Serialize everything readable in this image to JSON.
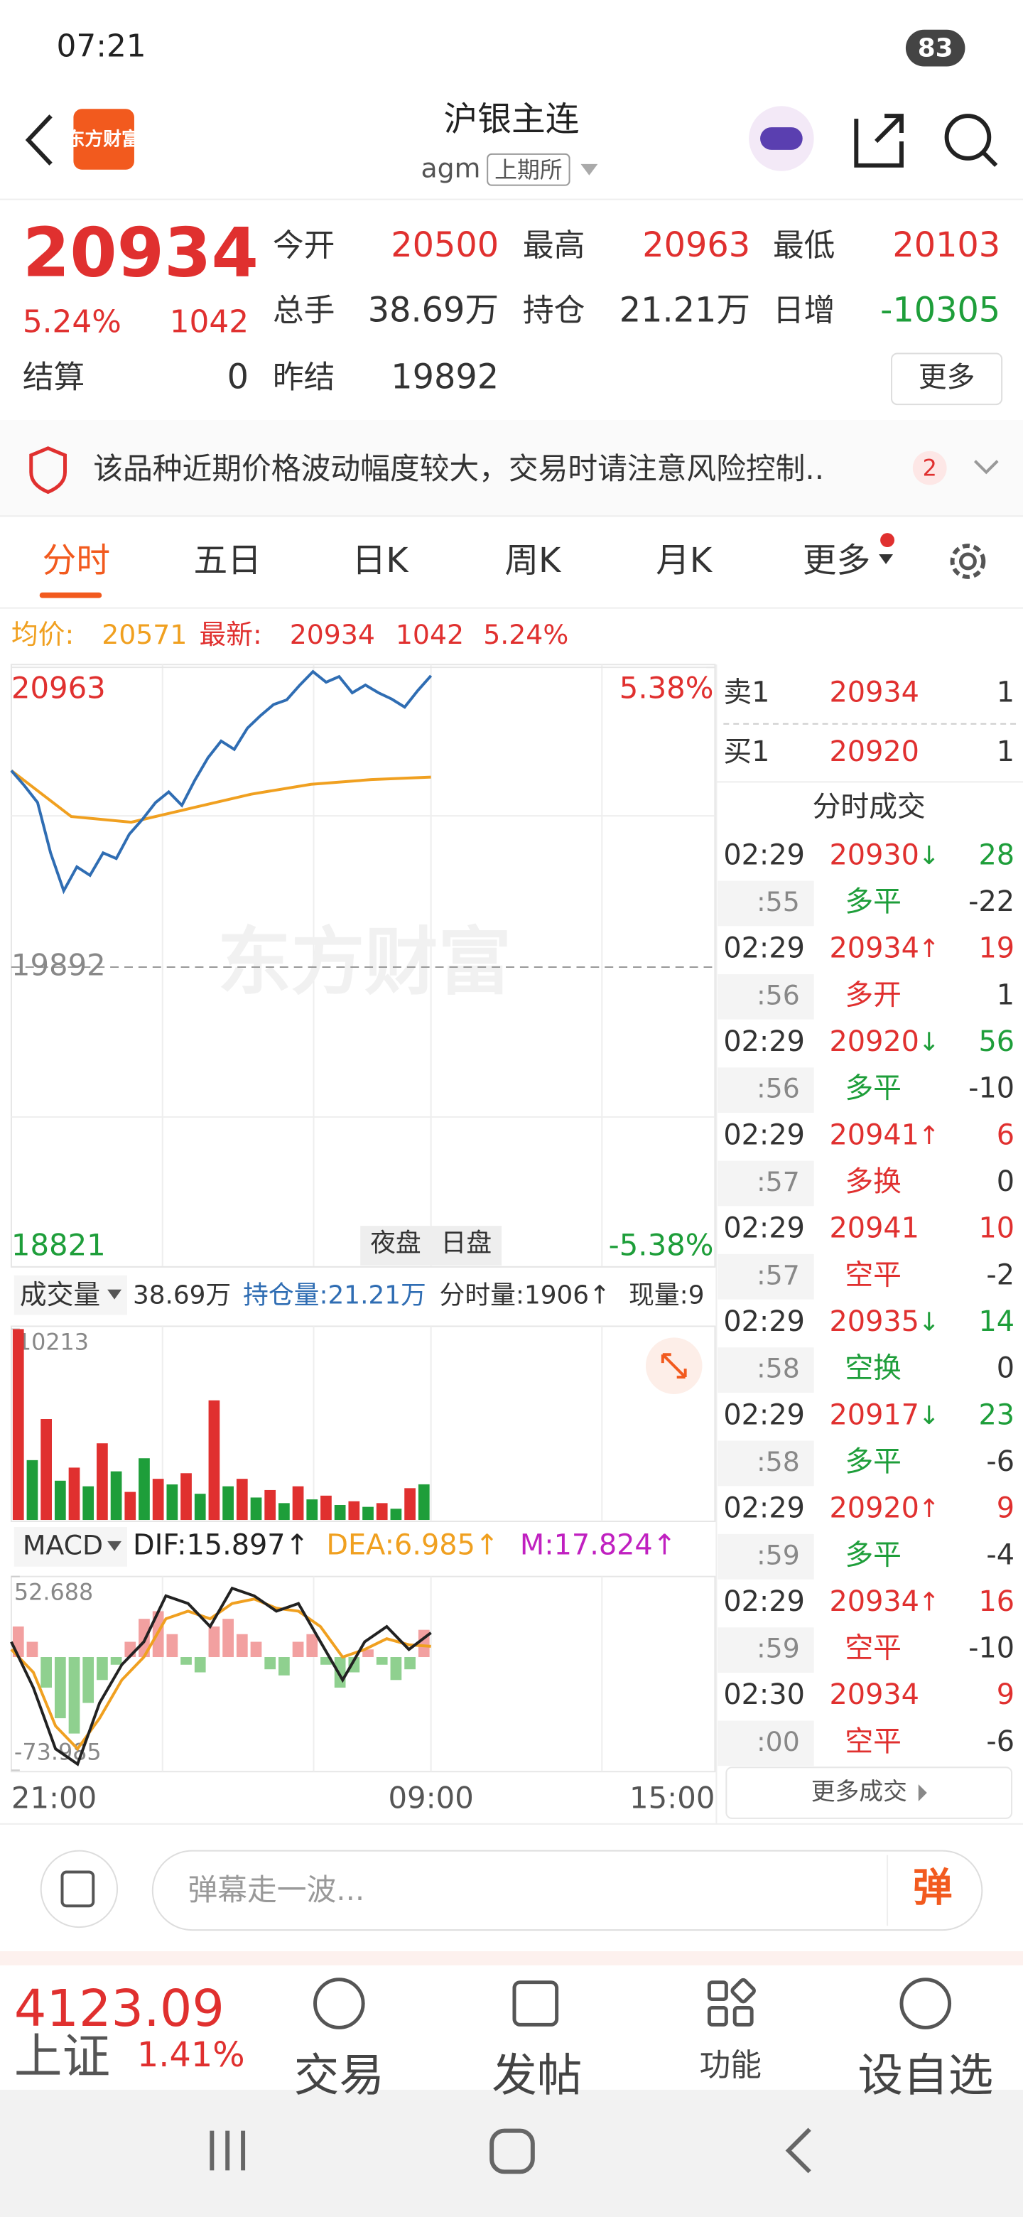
{
  "status_bar": {
    "time": "07:21",
    "battery": "83"
  },
  "header": {
    "logo": "东方财富",
    "title": "沪银主连",
    "code": "agm",
    "exchange": "上期所"
  },
  "quote": {
    "price": 20934,
    "change_pct": "5.24%",
    "change": 1042,
    "stats": [
      {
        "label": "今开",
        "value": "20500"
      },
      {
        "label": "最高",
        "value": "20963"
      },
      {
        "label": "最低",
        "value": "20103"
      },
      {
        "label": "总手",
        "value": "38.69万"
      },
      {
        "label": "持仓",
        "value": "21.21万"
      },
      {
        "label": "日增",
        "value": "-10305"
      },
      {
        "label": "结算",
        "value": "0"
      },
      {
        "label": "昨结",
        "value": "19892"
      }
    ],
    "more": "更多"
  },
  "notice": {
    "text": "该品种近期价格波动幅度较大，交易时请注意风险控制..",
    "count": "2"
  },
  "tabs": [
    "分时",
    "五日",
    "日K",
    "周K",
    "月K",
    "更多"
  ],
  "intraday": {
    "summary": {
      "avg_label": "均价:",
      "avg": 20571,
      "latest_label": "最新:",
      "latest": 20934,
      "change": 1042,
      "change_pct": "5.24%"
    },
    "ylim": [
      18821,
      20963
    ],
    "yticks": [
      20963,
      19892,
      18821
    ],
    "y2lim": [
      -5.38,
      5.38
    ],
    "y2ticks": [
      {
        "value": 5.38,
        "label": "5.38%"
      },
      {
        "value": -5.38,
        "label": "-5.38%"
      }
    ],
    "session_labels": [
      "夜盘",
      "日盘"
    ],
    "x_labels": [
      "21:00",
      "09:00",
      "15:00"
    ],
    "price": [
      20594,
      20540,
      20480,
      20300,
      20165,
      20250,
      20220,
      20300,
      20280,
      20367,
      20420,
      20480,
      20518,
      20470,
      20560,
      20640,
      20700,
      20670,
      20746,
      20790,
      20830,
      20847,
      20900,
      20948,
      20910,
      20930,
      20872,
      20900,
      20872,
      20850,
      20821,
      20880,
      20933
    ],
    "avg": [
      20594,
      20430,
      20410,
      20460,
      20510,
      20545,
      20562,
      20571
    ],
    "price_color": "#2f6db3",
    "avg_color": "#f0a020"
  },
  "volume": {
    "label": "成交量",
    "items": [
      "38.69万",
      "持仓量:21.21万",
      "分时量:1906↑",
      "现量:9"
    ],
    "ylim": [
      0,
      10213
    ],
    "yticks": [
      10213
    ],
    "values": [
      10213,
      3200,
      5400,
      2100,
      2800,
      1800,
      4100,
      2600,
      1500,
      3300,
      2200,
      1900,
      2500,
      1400,
      6400,
      1800,
      2200,
      1200,
      1600,
      900,
      1800,
      1100,
      1300,
      800,
      1000,
      700,
      900,
      600,
      1700,
      1906
    ]
  },
  "macd": {
    "label": "MACD",
    "dif_label": "DIF:15.897↑",
    "dea_label": "DEA:6.985↑",
    "m_label": "M:17.824↑",
    "ylim": [
      -73.985,
      52.688
    ],
    "yticks": [
      52.688,
      -73.985
    ],
    "hist": [
      20,
      10,
      -20,
      -40,
      -50,
      -30,
      -15,
      -5,
      10,
      25,
      30,
      15,
      -5,
      -10,
      20,
      25,
      15,
      10,
      -8,
      -12,
      10,
      15,
      -5,
      -20,
      -10,
      5,
      -5,
      -15,
      -8,
      17.824
    ],
    "dif": [
      10,
      -20,
      -60,
      -70,
      -30,
      -5,
      10,
      40,
      35,
      20,
      45,
      40,
      30,
      35,
      10,
      -15,
      10,
      20,
      5,
      15.897
    ],
    "dea": [
      5,
      -10,
      -45,
      -60,
      -40,
      -15,
      0,
      25,
      30,
      25,
      35,
      38,
      32,
      30,
      20,
      0,
      5,
      12,
      8,
      6.985
    ]
  },
  "order_book": [
    {
      "label": "卖1",
      "price": 20934,
      "volume": 1
    },
    {
      "label": "买1",
      "price": 20920,
      "volume": 1
    }
  ],
  "trades_title": "分时成交",
  "trades": [
    {
      "time": "02:29",
      "price": 20930,
      "direction": "↓",
      "volume": 28,
      "second": ":55",
      "type": "多平",
      "oi_change": -22
    },
    {
      "time": "02:29",
      "price": 20934,
      "direction": "↑",
      "volume": 19,
      "second": ":56",
      "type": "多开",
      "oi_change": 1
    },
    {
      "time": "02:29",
      "price": 20920,
      "direction": "↓",
      "volume": 56,
      "second": ":56",
      "type": "多平",
      "oi_change": -10
    },
    {
      "time": "02:29",
      "price": 20941,
      "direction": "↑",
      "volume": 6,
      "second": ":57",
      "type": "多换",
      "oi_change": 0
    },
    {
      "time": "02:29",
      "price": 20941,
      "volume": 10,
      "second": ":57",
      "type": "空平",
      "oi_change": -2
    },
    {
      "time": "02:29",
      "price": 20935,
      "direction": "↓",
      "volume": 14,
      "second": ":58",
      "type": "空换",
      "oi_change": 0
    },
    {
      "time": "02:29",
      "price": 20917,
      "direction": "↓",
      "volume": 23,
      "second": ":58",
      "type": "多平",
      "oi_change": -6
    },
    {
      "time": "02:29",
      "price": 20920,
      "direction": "↑",
      "volume": 9,
      "second": ":59",
      "type": "多平",
      "oi_change": -4
    },
    {
      "time": "02:29",
      "price": 20934,
      "direction": "↑",
      "volume": 16,
      "second": ":59",
      "type": "空平",
      "oi_change": -10
    },
    {
      "time": "02:30",
      "price": 20934,
      "volume": 9,
      "second": ":00",
      "type": "空平",
      "oi_change": -6
    }
  ],
  "trades_more": "更多成交",
  "comment_bar": {
    "placeholder": "弹幕走一波...",
    "button": "弹"
  },
  "bottom_bar": {
    "index": "4123.09",
    "index_name": "上证",
    "index_pct": "1.41%",
    "nav": [
      "交易",
      "发帖",
      "功能",
      "设自选"
    ]
  }
}
